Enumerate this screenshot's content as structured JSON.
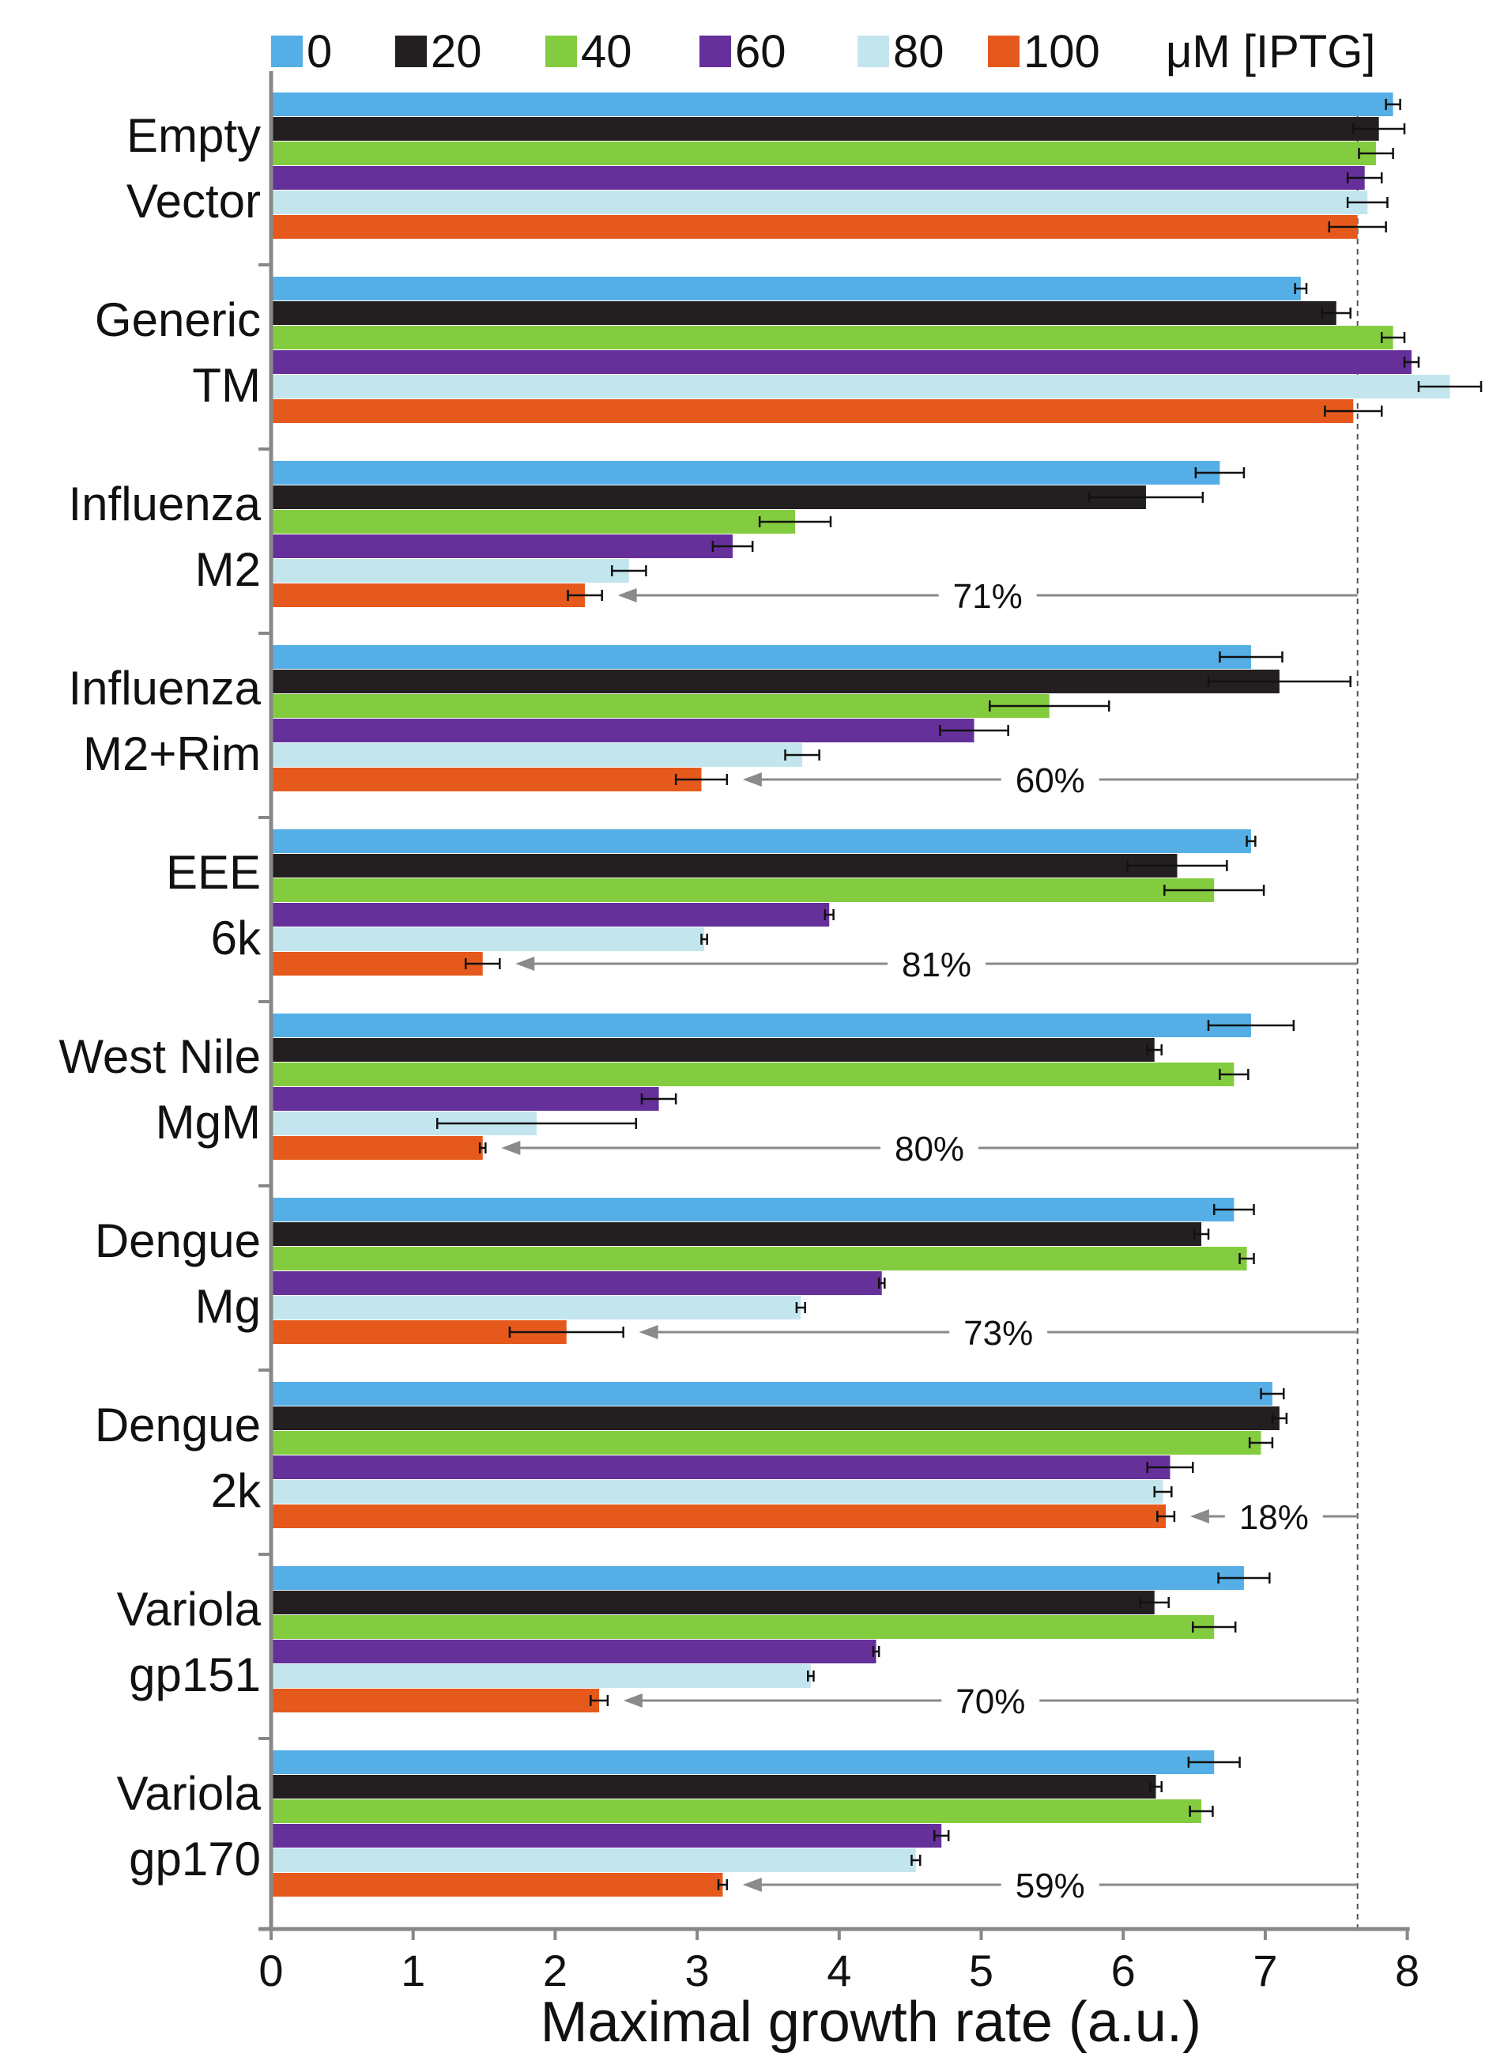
{
  "chart_data": {
    "type": "bar",
    "orientation": "horizontal",
    "xlabel": "Maximal growth rate (a.u.)",
    "xlim": [
      0,
      8
    ],
    "xticks": [
      "0",
      "1",
      "2",
      "3",
      "4",
      "5",
      "6",
      "7",
      "8"
    ],
    "legend_unit": "μM [IPTG]",
    "legend_position": "top",
    "reference_value": 7.65,
    "series": [
      {
        "name": "0",
        "color": "#55aee6"
      },
      {
        "name": "20",
        "color": "#231f20"
      },
      {
        "name": "40",
        "color": "#84cc3f"
      },
      {
        "name": "60",
        "color": "#66309a"
      },
      {
        "name": "80",
        "color": "#c3e6ee"
      },
      {
        "name": "100",
        "color": "#e55a1c"
      }
    ],
    "groups": [
      {
        "label": [
          "Empty",
          "Vector"
        ],
        "values": [
          7.9,
          7.8,
          7.78,
          7.7,
          7.72,
          7.65
        ],
        "errors": [
          0.05,
          0.18,
          0.12,
          0.12,
          0.14,
          0.2
        ],
        "reduction": null
      },
      {
        "label": [
          "Generic",
          "TM"
        ],
        "values": [
          7.25,
          7.5,
          7.9,
          8.03,
          8.3,
          7.62
        ],
        "errors": [
          0.04,
          0.1,
          0.08,
          0.05,
          0.22,
          0.2
        ],
        "reduction": null
      },
      {
        "label": [
          "Influenza",
          "M2"
        ],
        "values": [
          6.68,
          6.16,
          3.69,
          3.25,
          2.52,
          2.21
        ],
        "errors": [
          0.17,
          0.4,
          0.25,
          0.14,
          0.12,
          0.12
        ],
        "reduction": "71%"
      },
      {
        "label": [
          "Influenza",
          "M2+Rim"
        ],
        "values": [
          6.9,
          7.1,
          5.48,
          4.95,
          3.74,
          3.03
        ],
        "errors": [
          0.22,
          0.5,
          0.42,
          0.24,
          0.12,
          0.18
        ],
        "reduction": "60%"
      },
      {
        "label": [
          "EEE",
          "6k"
        ],
        "values": [
          6.9,
          6.38,
          6.64,
          3.93,
          3.05,
          1.49
        ],
        "errors": [
          0.03,
          0.35,
          0.35,
          0.03,
          0.02,
          0.12
        ],
        "reduction": "81%"
      },
      {
        "label": [
          "West Nile",
          "MgM"
        ],
        "values": [
          6.9,
          6.22,
          6.78,
          2.73,
          1.87,
          1.49
        ],
        "errors": [
          0.3,
          0.05,
          0.1,
          0.12,
          0.7,
          0.02
        ],
        "reduction": "80%"
      },
      {
        "label": [
          "Dengue",
          "Mg"
        ],
        "values": [
          6.78,
          6.55,
          6.87,
          4.3,
          3.73,
          2.08
        ],
        "errors": [
          0.14,
          0.05,
          0.05,
          0.02,
          0.03,
          0.4
        ],
        "reduction": "73%"
      },
      {
        "label": [
          "Dengue",
          "2k"
        ],
        "values": [
          7.05,
          7.1,
          6.97,
          6.33,
          6.28,
          6.3
        ],
        "errors": [
          0.08,
          0.05,
          0.08,
          0.16,
          0.06,
          0.06
        ],
        "reduction": "18%"
      },
      {
        "label": [
          "Variola",
          "gp151"
        ],
        "values": [
          6.85,
          6.22,
          6.64,
          4.26,
          3.8,
          2.31
        ],
        "errors": [
          0.18,
          0.1,
          0.15,
          0.02,
          0.02,
          0.06
        ],
        "reduction": "70%"
      },
      {
        "label": [
          "Variola",
          "gp170"
        ],
        "values": [
          6.64,
          6.23,
          6.55,
          4.72,
          4.54,
          3.18
        ],
        "errors": [
          0.18,
          0.04,
          0.08,
          0.05,
          0.03,
          0.03
        ],
        "reduction": "59%"
      }
    ]
  }
}
